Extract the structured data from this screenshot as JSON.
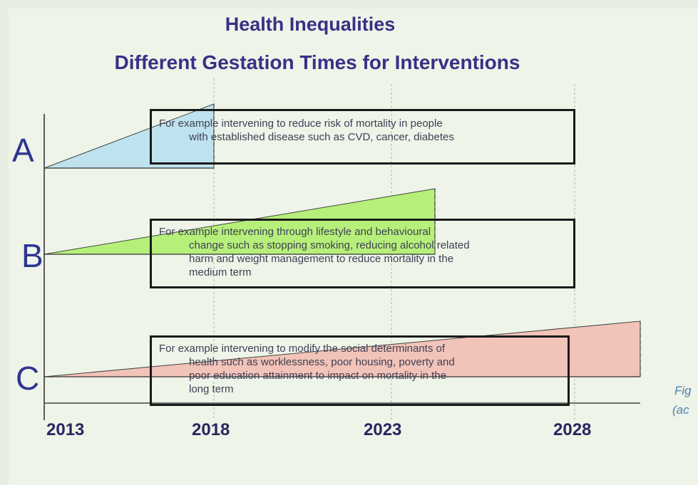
{
  "titles": {
    "main": "Health Inequalities",
    "sub": "Different Gestation Times for Interventions"
  },
  "rows": [
    {
      "letter": "A",
      "color": "#bfe3ee",
      "lines": [
        "For example intervening to reduce risk of mortality in people",
        "with established disease such as CVD, cancer, diabetes"
      ]
    },
    {
      "letter": "B",
      "color": "#b6f07a",
      "lines": [
        "For example intervening through lifestyle and behavioural",
        "change such as stopping smoking, reducing alcohol related",
        "harm and weight management to reduce mortality in the",
        "medium term"
      ]
    },
    {
      "letter": "C",
      "color": "#f2c3b8",
      "lines": [
        "For example intervening to modify the social determinants of",
        "health such as worklessness, poor housing, poverty and",
        "poor education attainment to impact on mortality in the",
        "long term"
      ]
    }
  ],
  "years": [
    "2013",
    "2018",
    "2023",
    "2028"
  ],
  "caption": [
    "Fig",
    "(ac"
  ]
}
